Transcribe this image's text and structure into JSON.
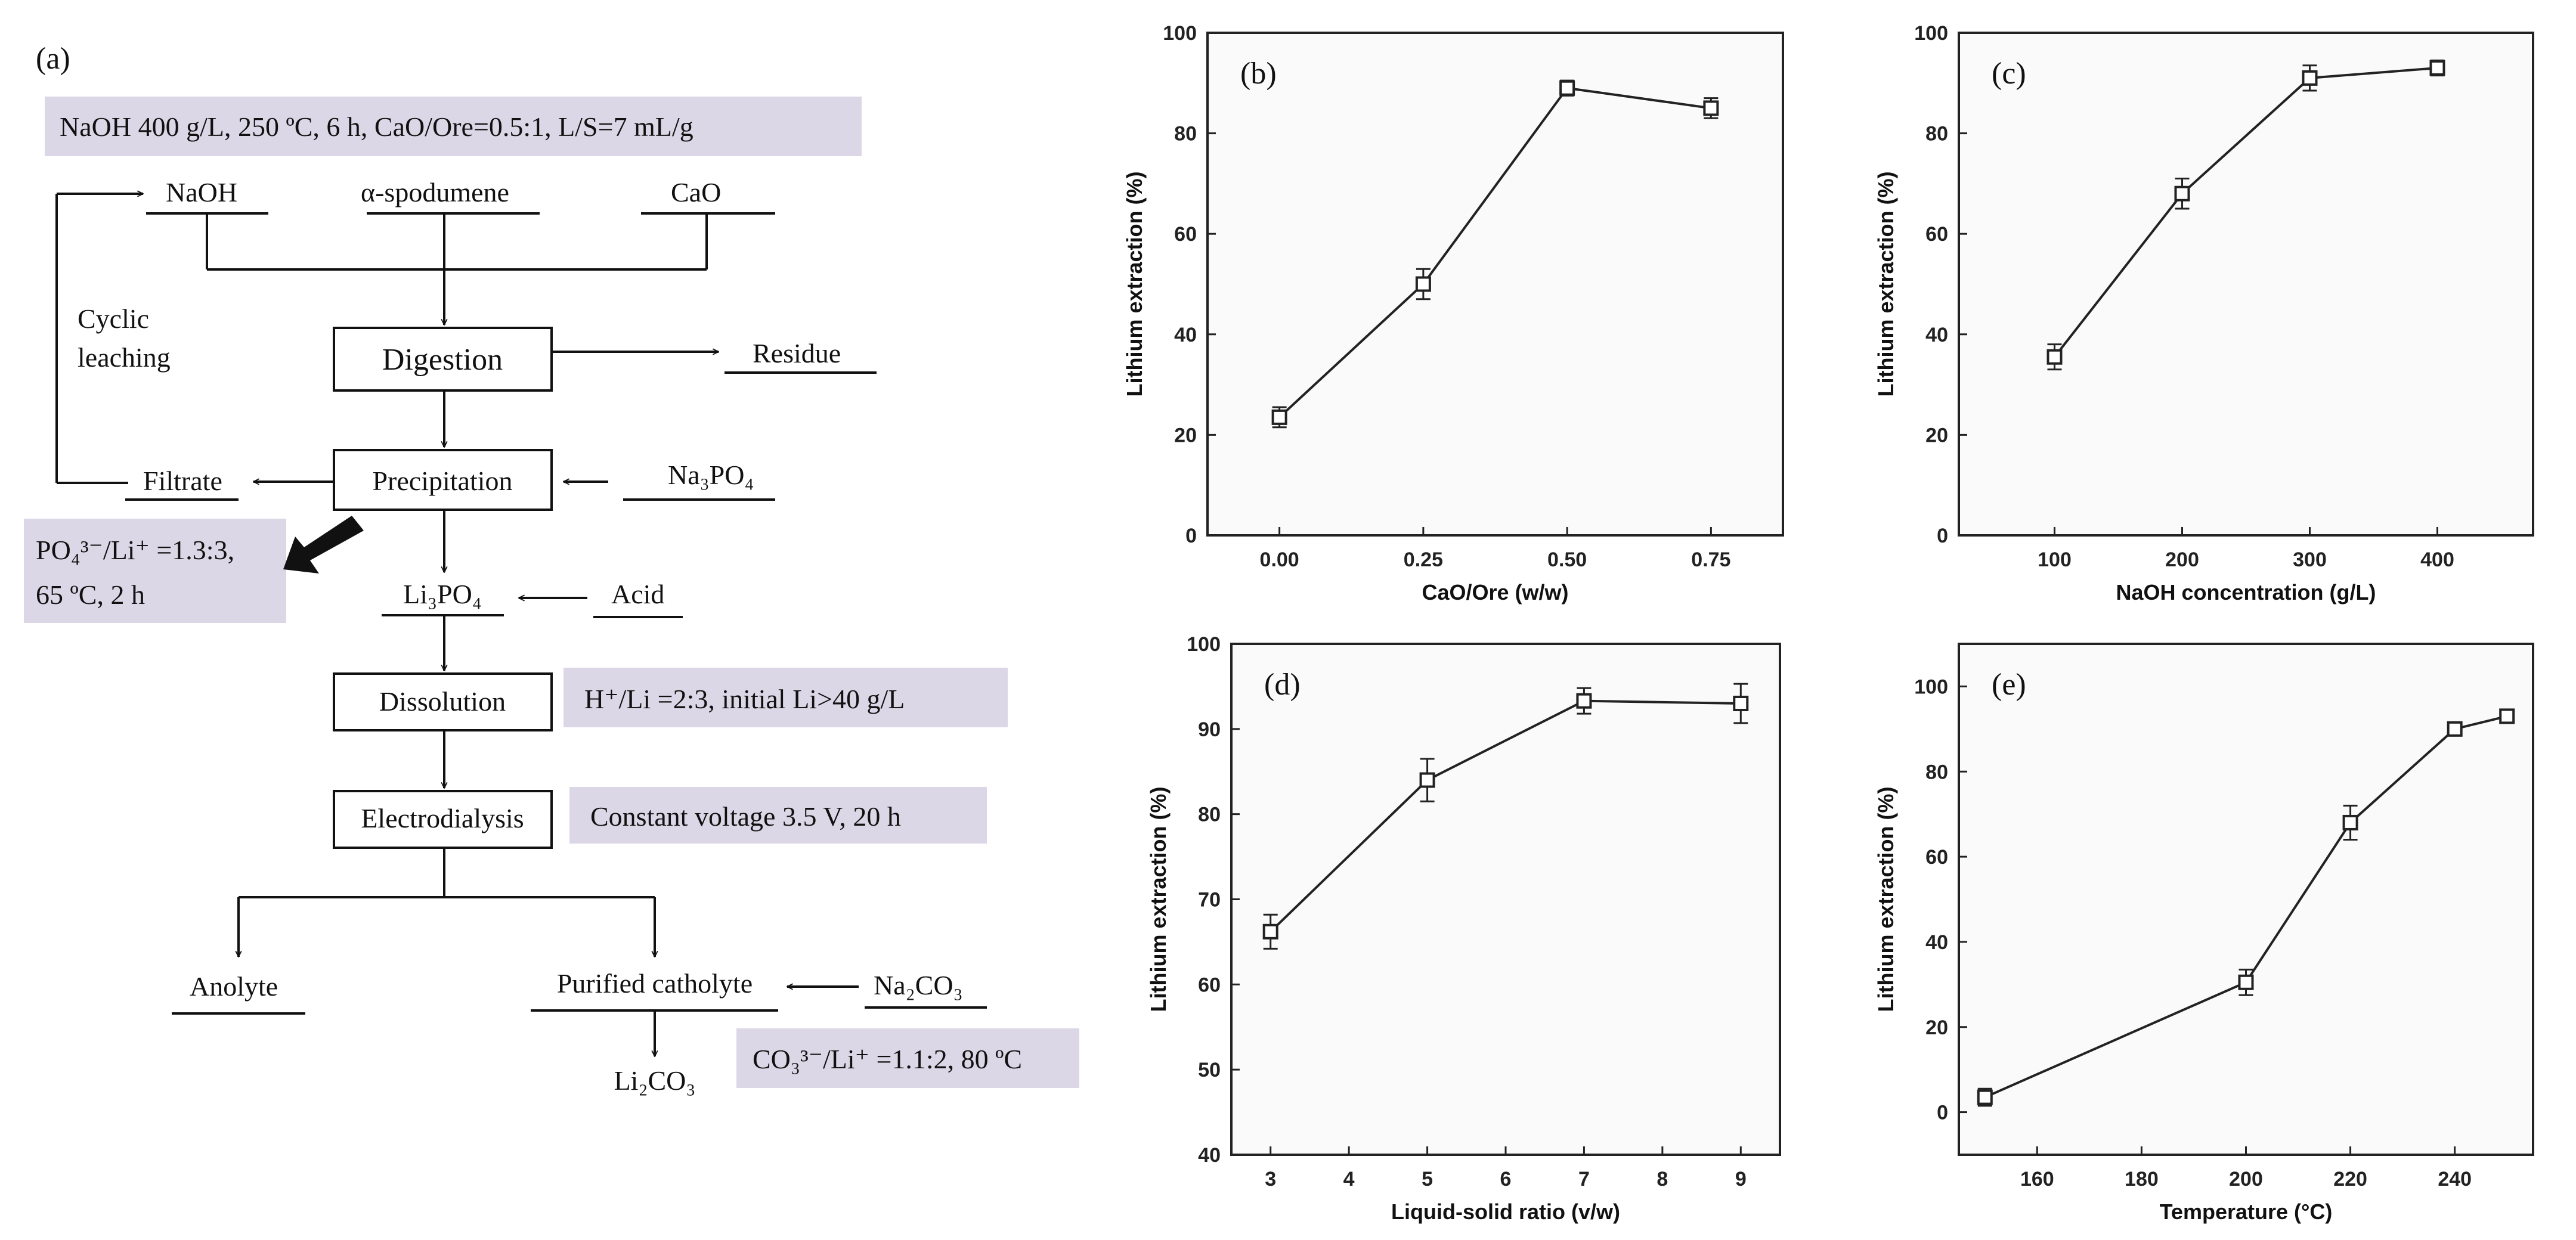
{
  "flowchart": {
    "panel_label": "(a)",
    "conditions": {
      "digestion": "NaOH 400 g/L, 250 ºC, 6 h, CaO/Ore=0.5:1,  L/S=7 mL/g",
      "precipitation_line1": "PO₄³⁻/Li⁺ =1.3:3,",
      "precipitation_line2": "65 ºC, 2 h",
      "dissolution": "H⁺/Li =2:3, initial Li>40 g/L",
      "electrodialysis": "Constant voltage 3.5 V, 20 h",
      "carbonation": "CO₃³⁻/Li⁺ =1.1:2,  80 ºC"
    },
    "inputs": {
      "naoh": "NaOH",
      "spodumene": "α-spodumene",
      "cao": "CaO",
      "na3po4": "Na₃PO₄",
      "acid": "Acid",
      "na2co3": "Na₂CO₃"
    },
    "steps": {
      "digestion": "Digestion",
      "precipitation": "Precipitation",
      "dissolution": "Dissolution",
      "electrodialysis": "Electrodialysis"
    },
    "products": {
      "residue": "Residue",
      "filtrate": "Filtrate",
      "li3po4": "Li₃PO₄",
      "anolyte": "Anolyte",
      "catholyte": "Purified catholyte",
      "li2co3": "Li₂CO₃"
    },
    "cyclic_line1": "Cyclic",
    "cyclic_line2": "leaching"
  },
  "chart_data": [
    {
      "panel": "(b)",
      "type": "line",
      "xlabel": "CaO/Ore (w/w)",
      "ylabel": "Lithium extraction (%)",
      "x": [
        0.0,
        0.25,
        0.5,
        0.75
      ],
      "y": [
        23.5,
        50,
        89,
        85
      ],
      "err": [
        2,
        3,
        1.5,
        2
      ],
      "xlim": [
        -0.125,
        0.875
      ],
      "ylim": [
        0,
        100
      ],
      "xticks": [
        0.0,
        0.25,
        0.5,
        0.75
      ],
      "xtick_labels": [
        "0.00",
        "0.25",
        "0.50",
        "0.75"
      ],
      "yticks": [
        0,
        20,
        40,
        60,
        80,
        100
      ],
      "ytick_labels": [
        "0",
        "20",
        "40",
        "60",
        "80",
        "100"
      ]
    },
    {
      "panel": "(c)",
      "type": "line",
      "xlabel": "NaOH concentration (g/L)",
      "ylabel": "Lithium extraction (%)",
      "x": [
        100,
        200,
        300,
        400
      ],
      "y": [
        35.5,
        68,
        91,
        93
      ],
      "err": [
        2.5,
        3,
        2.5,
        1.5
      ],
      "xlim": [
        25,
        475
      ],
      "ylim": [
        0,
        100
      ],
      "xticks": [
        100,
        200,
        300,
        400
      ],
      "xtick_labels": [
        "100",
        "200",
        "300",
        "400"
      ],
      "yticks": [
        0,
        20,
        40,
        60,
        80,
        100
      ],
      "ytick_labels": [
        "0",
        "20",
        "40",
        "60",
        "80",
        "100"
      ]
    },
    {
      "panel": "(d)",
      "type": "line",
      "xlabel": "Liquid-solid ratio (v/w)",
      "ylabel": "Lithium extraction (%)",
      "x": [
        3,
        5,
        7,
        9
      ],
      "y": [
        66.2,
        84,
        93.3,
        93
      ],
      "err": [
        2,
        2.5,
        1.5,
        2.3
      ],
      "xlim": [
        2.5,
        9.5
      ],
      "ylim": [
        40,
        100
      ],
      "xticks": [
        3,
        4,
        5,
        6,
        7,
        8,
        9
      ],
      "xtick_labels": [
        "3",
        "4",
        "5",
        "6",
        "7",
        "8",
        "9"
      ],
      "yticks": [
        40,
        50,
        60,
        70,
        80,
        90,
        100
      ],
      "ytick_labels": [
        "40",
        "50",
        "60",
        "70",
        "80",
        "90",
        "100"
      ]
    },
    {
      "panel": "(e)",
      "type": "line",
      "xlabel": "Temperature (°C)",
      "ylabel": "Lithium extraction (%)",
      "x": [
        150,
        200,
        220,
        240,
        250
      ],
      "y": [
        3.5,
        30.5,
        68,
        90,
        93
      ],
      "err": [
        2,
        3,
        4,
        1.5,
        1
      ],
      "xlim": [
        145,
        255
      ],
      "ylim": [
        -10,
        110
      ],
      "xticks": [
        160,
        180,
        200,
        220,
        240
      ],
      "xtick_labels": [
        "160",
        "180",
        "200",
        "220",
        "240"
      ],
      "yticks": [
        0,
        20,
        40,
        60,
        80,
        100
      ],
      "ytick_labels": [
        "0",
        "20",
        "40",
        "60",
        "80",
        "100"
      ]
    }
  ]
}
